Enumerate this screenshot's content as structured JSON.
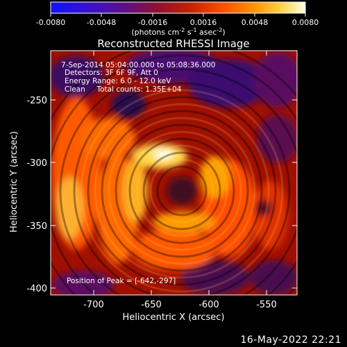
{
  "colorbar": {
    "ticks": [
      "-0.0080",
      "-0.0048",
      "-0.0016",
      "0.0016",
      "0.0048",
      "0.0080"
    ],
    "units_main": "(photons cm",
    "units_sup1": "-2",
    "units_mid1": " s",
    "units_sup2": "-1",
    "units_mid2": " asec",
    "units_sup3": "-2",
    "units_end": ")"
  },
  "title": "Reconstructed RHESSI Image",
  "info": {
    "time_range": "7-Sep-2014 05:04:00.000 to 05:08:36.000",
    "detectors": "Detectors: 3F 6F 9F, Att 0",
    "energy": "Energy Range: 6.0 - 12.0 keV",
    "clean": "Clean     Total counts: 1.35E+04",
    "peak": "Position of Peak = [-642,-297]"
  },
  "axes": {
    "xlabel": "Heliocentric X (arcsec)",
    "ylabel": "Heliocentric Y (arcsec)",
    "xticks": [
      "-700",
      "-650",
      "-600",
      "-550"
    ],
    "yticks": [
      "-250",
      "-300",
      "-350",
      "-400"
    ]
  },
  "timestamp": "16-May-2022 22:21",
  "colors": {
    "colormap": [
      "#1a1aff",
      "#3a00c8",
      "#5a0096",
      "#7a0050",
      "#a00000",
      "#d22000",
      "#ff5a00",
      "#ff9a00",
      "#ffd040",
      "#ffffe0"
    ]
  }
}
